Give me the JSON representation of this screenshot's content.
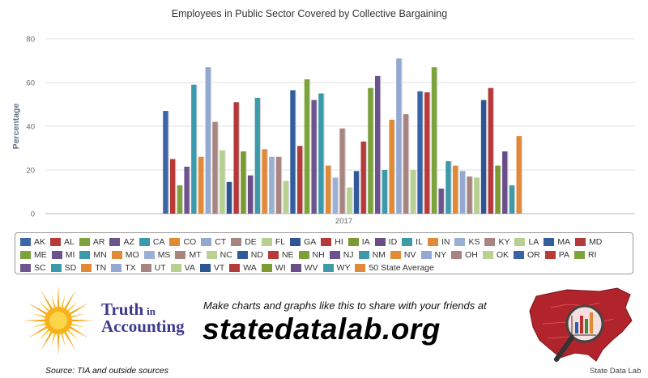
{
  "chart_data": {
    "type": "bar",
    "title": "Employees in Public Sector Covered by Collective Bargaining",
    "xlabel": "",
    "ylabel": "Percentage",
    "categories": [
      "2017"
    ],
    "ylim": [
      0,
      80
    ],
    "yticks": [
      0,
      20,
      40,
      60,
      80
    ],
    "grid": true,
    "legend_position": "bottom",
    "series": [
      {
        "name": "AK",
        "values": [
          47
        ],
        "color": "#3b67a8"
      },
      {
        "name": "AL",
        "values": [
          25
        ],
        "color": "#b93a36"
      },
      {
        "name": "AR",
        "values": [
          13
        ],
        "color": "#7da33a"
      },
      {
        "name": "AZ",
        "values": [
          21.5
        ],
        "color": "#6e548f"
      },
      {
        "name": "CA",
        "values": [
          59
        ],
        "color": "#3b9aab"
      },
      {
        "name": "CO",
        "values": [
          26
        ],
        "color": "#e08a36"
      },
      {
        "name": "CT",
        "values": [
          67
        ],
        "color": "#93a9d2"
      },
      {
        "name": "DE",
        "values": [
          42
        ],
        "color": "#a88481"
      },
      {
        "name": "FL",
        "values": [
          29
        ],
        "color": "#b7cf8f"
      },
      {
        "name": "GA",
        "values": [
          14.5
        ],
        "color": "#2d5593"
      },
      {
        "name": "HI",
        "values": [
          51
        ],
        "color": "#b4393b"
      },
      {
        "name": "IA",
        "values": [
          28.5
        ],
        "color": "#7b9a32"
      },
      {
        "name": "ID",
        "values": [
          17.5
        ],
        "color": "#6a4e8a"
      },
      {
        "name": "IL",
        "values": [
          53
        ],
        "color": "#3f9aa8"
      },
      {
        "name": "IN",
        "values": [
          29.5
        ],
        "color": "#e0893a"
      },
      {
        "name": "KS",
        "values": [
          26
        ],
        "color": "#98afd4"
      },
      {
        "name": "KY",
        "values": [
          26
        ],
        "color": "#a88482"
      },
      {
        "name": "LA",
        "values": [
          15
        ],
        "color": "#b8d08f"
      },
      {
        "name": "MA",
        "values": [
          56.5
        ],
        "color": "#335e9e"
      },
      {
        "name": "MD",
        "values": [
          31
        ],
        "color": "#b33b39"
      },
      {
        "name": "ME",
        "values": [
          61.5
        ],
        "color": "#7da43a"
      },
      {
        "name": "MI",
        "values": [
          52
        ],
        "color": "#6c5490"
      },
      {
        "name": "MN",
        "values": [
          55
        ],
        "color": "#3a99ab"
      },
      {
        "name": "MO",
        "values": [
          22
        ],
        "color": "#df8a37"
      },
      {
        "name": "MS",
        "values": [
          16.5
        ],
        "color": "#9ab0d6"
      },
      {
        "name": "MT",
        "values": [
          39
        ],
        "color": "#a98582"
      },
      {
        "name": "NC",
        "values": [
          12
        ],
        "color": "#b9d192"
      },
      {
        "name": "ND",
        "values": [
          19.5
        ],
        "color": "#2f5a9b"
      },
      {
        "name": "NE",
        "values": [
          33
        ],
        "color": "#b63a3a"
      },
      {
        "name": "NH",
        "values": [
          57.5
        ],
        "color": "#7aa03a"
      },
      {
        "name": "NJ",
        "values": [
          63
        ],
        "color": "#6b5190"
      },
      {
        "name": "NM",
        "values": [
          20
        ],
        "color": "#3c9aa9"
      },
      {
        "name": "NV",
        "values": [
          43
        ],
        "color": "#e08a36"
      },
      {
        "name": "NY",
        "values": [
          71
        ],
        "color": "#93a9d2"
      },
      {
        "name": "OH",
        "values": [
          45.5
        ],
        "color": "#a88481"
      },
      {
        "name": "OK",
        "values": [
          20
        ],
        "color": "#b9d192"
      },
      {
        "name": "OR",
        "values": [
          56
        ],
        "color": "#3863a6"
      },
      {
        "name": "PA",
        "values": [
          55.5
        ],
        "color": "#b93a36"
      },
      {
        "name": "RI",
        "values": [
          67
        ],
        "color": "#7da43a"
      },
      {
        "name": "SC",
        "values": [
          11.5
        ],
        "color": "#6e548f"
      },
      {
        "name": "SD",
        "values": [
          24
        ],
        "color": "#3b9aab"
      },
      {
        "name": "TN",
        "values": [
          22
        ],
        "color": "#e08a36"
      },
      {
        "name": "TX",
        "values": [
          19.5
        ],
        "color": "#93a9d2"
      },
      {
        "name": "UT",
        "values": [
          17
        ],
        "color": "#a88481"
      },
      {
        "name": "VA",
        "values": [
          16.5
        ],
        "color": "#b7cf8f"
      },
      {
        "name": "VT",
        "values": [
          52
        ],
        "color": "#2d5593"
      },
      {
        "name": "WA",
        "values": [
          57.5
        ],
        "color": "#b4393b"
      },
      {
        "name": "WI",
        "values": [
          22
        ],
        "color": "#7b9a32"
      },
      {
        "name": "WV",
        "values": [
          28.5
        ],
        "color": "#6a4e8a"
      },
      {
        "name": "WY",
        "values": [
          13
        ],
        "color": "#3f9aa8"
      },
      {
        "name": "50 State Average",
        "values": [
          35.5
        ],
        "color": "#e0893a"
      }
    ]
  },
  "footer": {
    "tia_truth": "Truth",
    "tia_in": "in",
    "tia_accounting": "Accounting",
    "source": "Source: TIA and outside sources",
    "promo": "Make charts and graphs like this to share with your friends at",
    "site": "statedatalab.org",
    "brand": "State Data Lab"
  }
}
